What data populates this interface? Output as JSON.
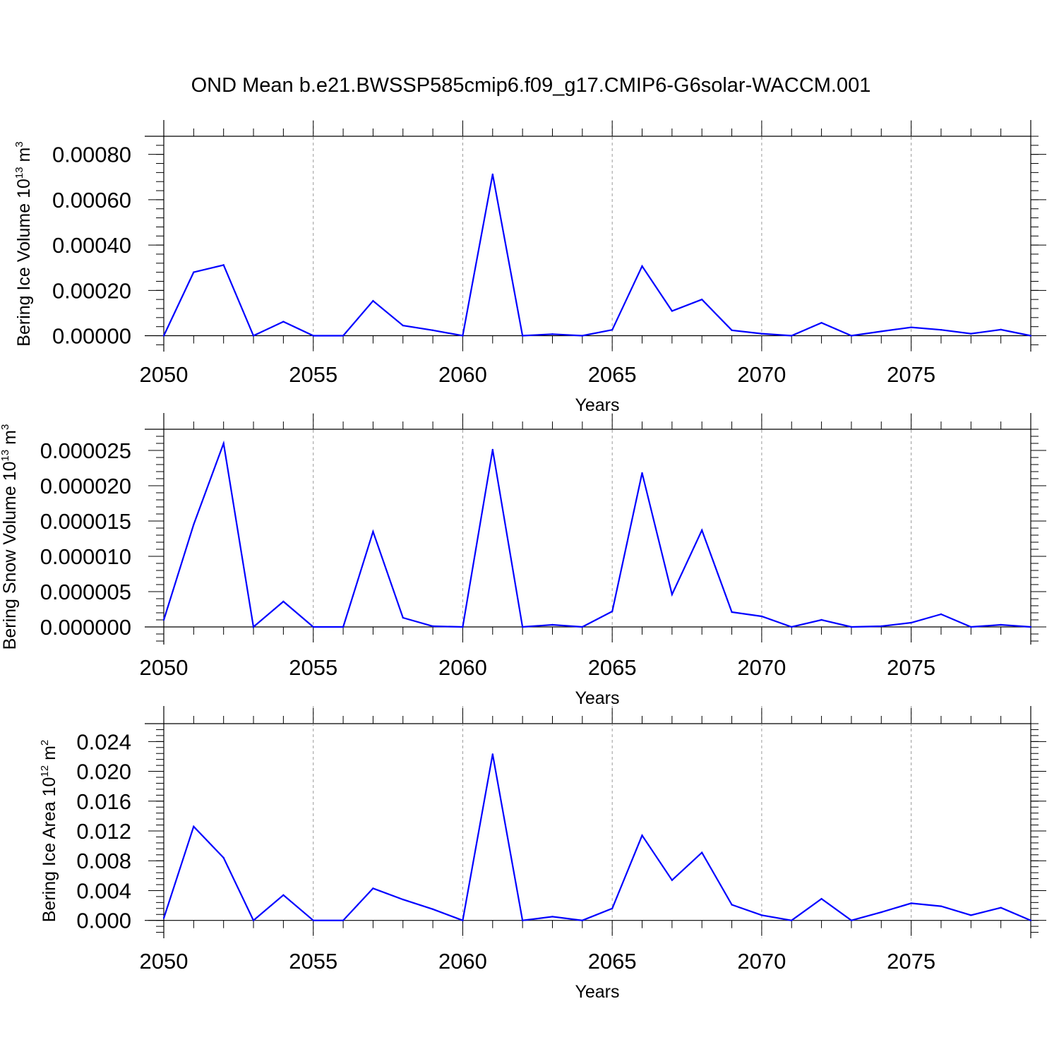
{
  "title": "OND Mean b.e21.BWSSP585cmip6.f09_g17.CMIP6-G6solar-WACCM.001",
  "chart_data": [
    {
      "type": "line",
      "ylabel_main": "Bering Ice Volume 10",
      "ylabel_exp": "13",
      "ylabel_unit": " m",
      "ylabel_unit_exp": "3",
      "xlabel": "Years",
      "x": [
        2050,
        2051,
        2052,
        2053,
        2054,
        2055,
        2056,
        2057,
        2058,
        2059,
        2060,
        2061,
        2062,
        2063,
        2064,
        2065,
        2066,
        2067,
        2068,
        2069,
        2070,
        2071,
        2072,
        2073,
        2074,
        2075,
        2076,
        2077,
        2078,
        2079
      ],
      "values": [
        0.0,
        0.00028,
        0.000312,
        0.0,
        6.2e-05,
        0.0,
        0.0,
        0.000154,
        4.5e-05,
        2.4e-05,
        0.0,
        0.000712,
        0.0,
        7e-06,
        0.0,
        2.6e-05,
        0.000307,
        0.000109,
        0.00016,
        2.4e-05,
        9e-06,
        0.0,
        5.7e-05,
        0.0,
        1.9e-05,
        3.7e-05,
        2.6e-05,
        9e-06,
        2.7e-05,
        0.0
      ],
      "xlim": [
        2050,
        2079
      ],
      "ylim": [
        -7e-05,
        0.00088
      ],
      "yticks": [
        0,
        0.0002,
        0.0004,
        0.0006,
        0.0008
      ],
      "ytick_labels": [
        "0.00000",
        "0.00020",
        "0.00040",
        "0.00060",
        "0.00080"
      ],
      "yminor_step": 4e-05,
      "xticks": [
        2050,
        2055,
        2060,
        2065,
        2070,
        2075
      ],
      "xtick_labels": [
        "2050",
        "2055",
        "2060",
        "2065",
        "2070",
        "2075"
      ],
      "grid_x": true,
      "line_color": "#0000ff"
    },
    {
      "type": "line",
      "ylabel_main": "Bering Snow Volume 10",
      "ylabel_exp": "13",
      "ylabel_unit": " m",
      "ylabel_unit_exp": "3",
      "xlabel": "Years",
      "x": [
        2050,
        2051,
        2052,
        2053,
        2054,
        2055,
        2056,
        2057,
        2058,
        2059,
        2060,
        2061,
        2062,
        2063,
        2064,
        2065,
        2066,
        2067,
        2068,
        2069,
        2070,
        2071,
        2072,
        2073,
        2074,
        2075,
        2076,
        2077,
        2078,
        2079
      ],
      "values": [
        1e-06,
        1.45e-05,
        2.6e-05,
        0.0,
        3.6e-06,
        0.0,
        0.0,
        1.35e-05,
        1.3e-06,
        1e-07,
        0.0,
        2.51e-05,
        0.0,
        3e-07,
        0.0,
        2.2e-06,
        2.18e-05,
        4.6e-06,
        1.37e-05,
        2.1e-06,
        1.5e-06,
        0.0,
        1e-06,
        0.0,
        1e-07,
        6e-07,
        1.8e-06,
        0.0,
        3e-07,
        0.0
      ],
      "xlim": [
        2050,
        2079
      ],
      "ylim": [
        -2.5e-06,
        2.8e-05
      ],
      "yticks": [
        0,
        5e-06,
        1e-05,
        1.5e-05,
        2e-05,
        2.5e-05
      ],
      "ytick_labels": [
        "0.000000",
        "0.000005",
        "0.000010",
        "0.000015",
        "0.000020",
        "0.000025"
      ],
      "yminor_step": 1e-06,
      "xticks": [
        2050,
        2055,
        2060,
        2065,
        2070,
        2075
      ],
      "xtick_labels": [
        "2050",
        "2055",
        "2060",
        "2065",
        "2070",
        "2075"
      ],
      "grid_x": true,
      "line_color": "#0000ff"
    },
    {
      "type": "line",
      "ylabel_main": "Bering Ice Area 10",
      "ylabel_exp": "12",
      "ylabel_unit": " m",
      "ylabel_unit_exp": "2",
      "xlabel": "Years",
      "x": [
        2050,
        2051,
        2052,
        2053,
        2054,
        2055,
        2056,
        2057,
        2058,
        2059,
        2060,
        2061,
        2062,
        2063,
        2064,
        2065,
        2066,
        2067,
        2068,
        2069,
        2070,
        2071,
        2072,
        2073,
        2074,
        2075,
        2076,
        2077,
        2078,
        2079
      ],
      "values": [
        0.0003,
        0.0126,
        0.0084,
        0.0,
        0.0034,
        0.0,
        0.0,
        0.0043,
        0.0028,
        0.0015,
        0.0,
        0.0223,
        0.0,
        0.0005,
        0.0,
        0.0016,
        0.0114,
        0.0054,
        0.0091,
        0.0021,
        0.0007,
        0.0,
        0.0029,
        0.0,
        0.0011,
        0.0023,
        0.0019,
        0.0007,
        0.0017,
        0.0
      ],
      "xlim": [
        2050,
        2079
      ],
      "ylim": [
        -0.0024,
        0.0264
      ],
      "yticks": [
        0,
        0.004,
        0.008,
        0.012,
        0.016,
        0.02,
        0.024
      ],
      "ytick_labels": [
        "0.000",
        "0.004",
        "0.008",
        "0.012",
        "0.016",
        "0.020",
        "0.024"
      ],
      "yminor_step": 0.0008,
      "xticks": [
        2050,
        2055,
        2060,
        2065,
        2070,
        2075
      ],
      "xtick_labels": [
        "2050",
        "2055",
        "2060",
        "2065",
        "2070",
        "2075"
      ],
      "grid_x": true,
      "line_color": "#0000ff"
    }
  ]
}
